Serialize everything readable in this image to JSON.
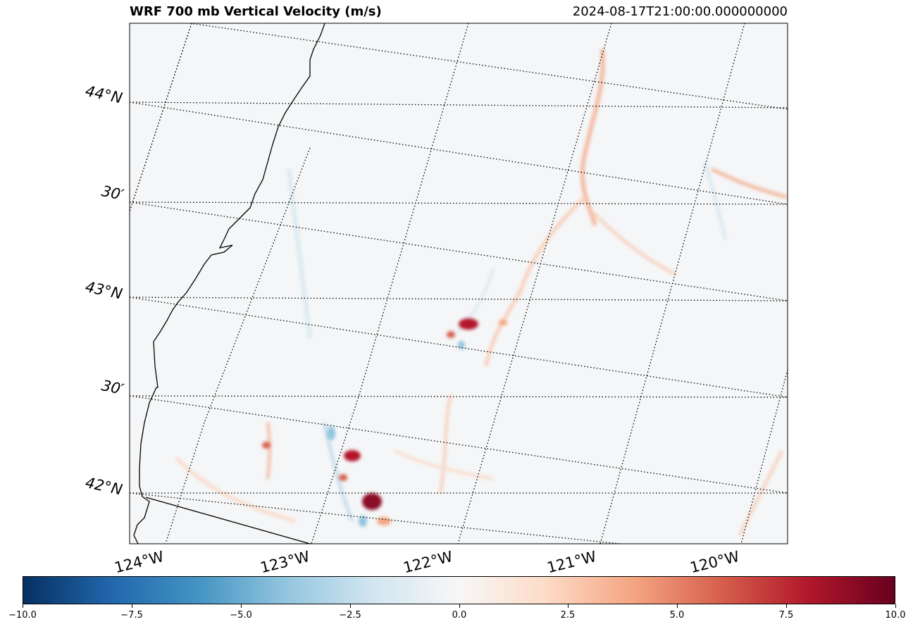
{
  "title": "WRF 700 mb Vertical Velocity (m/s)",
  "timestamp": "2024-08-17T21:00:00.000000000",
  "lat_labels": [
    "44°N",
    "30′",
    "43°N",
    "30′",
    "42°N"
  ],
  "lon_labels": [
    "124°W",
    "123°W",
    "122°W",
    "121°W",
    "120°W"
  ],
  "colorbar": {
    "colormap": "RdBu_r",
    "min": -10.0,
    "max": 10.0,
    "tick_labels": [
      "−10.0",
      "−7.5",
      "−5.0",
      "−2.5",
      "0.0",
      "2.5",
      "5.0",
      "7.5",
      "10.0"
    ],
    "colors": [
      "#053061",
      "#2166ac",
      "#4393c3",
      "#92c5de",
      "#d1e5f0",
      "#f7f7f7",
      "#fddbc7",
      "#f4a582",
      "#d6604d",
      "#b2182b",
      "#67001f"
    ]
  },
  "map_features": [
    "coastline",
    "state-border",
    "graticule"
  ]
}
